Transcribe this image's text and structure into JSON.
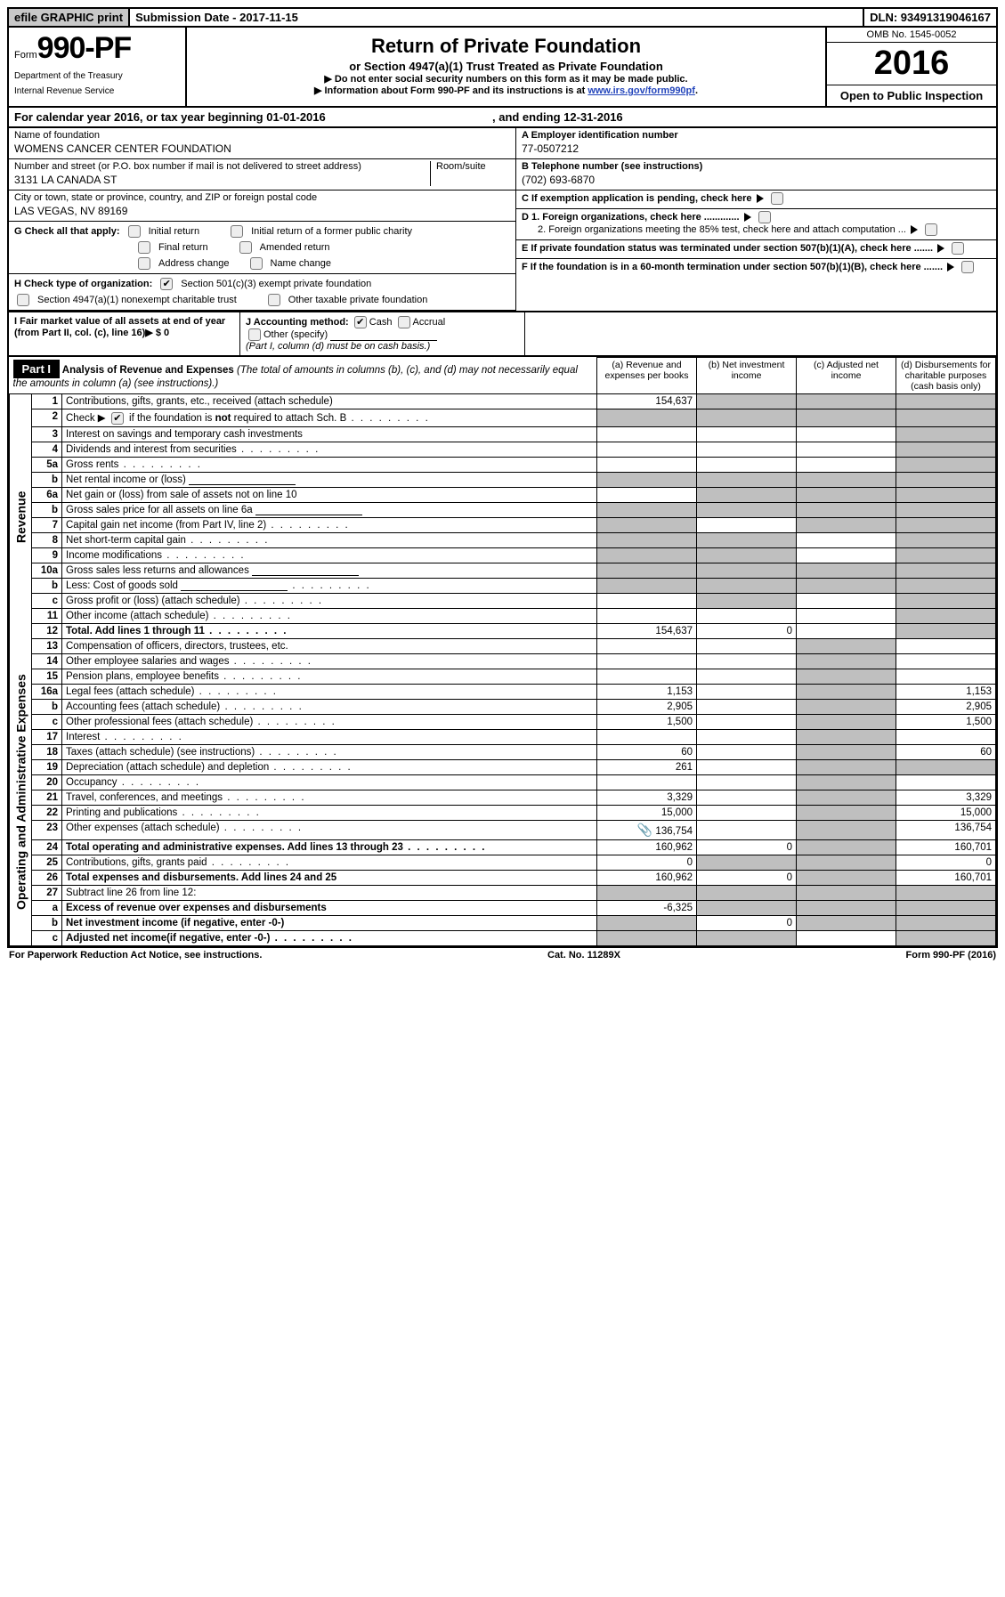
{
  "topbar": {
    "efile": "efile GRAPHIC print",
    "submission": "Submission Date - 2017-11-15",
    "dln": "DLN: 93491319046167"
  },
  "header": {
    "form_prefix": "Form",
    "form_number": "990-PF",
    "dept1": "Department of the Treasury",
    "dept2": "Internal Revenue Service",
    "title": "Return of Private Foundation",
    "subtitle": "or Section 4947(a)(1) Trust Treated as Private Foundation",
    "warn1": "▶ Do not enter social security numbers on this form as it may be made public.",
    "warn2_pre": "▶ Information about Form 990-PF and its instructions is at ",
    "warn2_link": "www.irs.gov/form990pf",
    "omb": "OMB No. 1545-0052",
    "year": "2016",
    "open": "Open to Public Inspection"
  },
  "calyear": {
    "text_pre": "For calendar year 2016, or tax year beginning ",
    "begin": "01-01-2016",
    "mid": " , and ending ",
    "end": "12-31-2016"
  },
  "id": {
    "name_lbl": "Name of foundation",
    "name": "WOMENS CANCER CENTER FOUNDATION",
    "addr_lbl": "Number and street (or P.O. box number if mail is not delivered to street address)",
    "addr": "3131 LA CANADA ST",
    "room_lbl": "Room/suite",
    "city_lbl": "City or town, state or province, country, and ZIP or foreign postal code",
    "city": "LAS VEGAS, NV  89169",
    "a_lbl": "A Employer identification number",
    "a_val": "77-0507212",
    "b_lbl": "B Telephone number (see instructions)",
    "b_val": "(702) 693-6870",
    "c_lbl": "C If exemption application is pending, check here",
    "d1": "D 1. Foreign organizations, check here .............",
    "d2": "2. Foreign organizations meeting the 85% test, check here and attach computation ...",
    "e": "E  If private foundation status was terminated under section 507(b)(1)(A), check here .......",
    "f": "F  If the foundation is in a 60-month termination under section 507(b)(1)(B), check here .......",
    "g_lbl": "G Check all that apply:",
    "g_opts": [
      "Initial return",
      "Initial return of a former public charity",
      "Final return",
      "Amended return",
      "Address change",
      "Name change"
    ],
    "h_lbl": "H Check type of organization:",
    "h_opts": [
      "Section 501(c)(3) exempt private foundation",
      "Section 4947(a)(1) nonexempt charitable trust",
      "Other taxable private foundation"
    ],
    "i_lbl": "I Fair market value of all assets at end of year (from Part II, col. (c), line 16)▶",
    "i_val": "$  0",
    "j_lbl": "J Accounting method:",
    "j_opts": [
      "Cash",
      "Accrual",
      "Other (specify)"
    ],
    "j_note": "(Part I, column (d) must be on cash basis.)"
  },
  "part1": {
    "title": "Part I",
    "head": "Analysis of Revenue and Expenses",
    "head_note": "(The total of amounts in columns (b), (c), and (d) may not necessarily equal the amounts in column (a) (see instructions).)",
    "col_a": "(a)  Revenue and expenses per books",
    "col_b": "(b)  Net investment income",
    "col_c": "(c)  Adjusted net income",
    "col_d": "(d)  Disbursements for charitable purposes (cash basis only)",
    "side_rev": "Revenue",
    "side_op": "Operating and Administrative Expenses",
    "rows": {
      "r1": {
        "n": "1",
        "d": "Contributions, gifts, grants, etc., received (attach schedule)",
        "a": "154,637",
        "grey": [
          "b",
          "c",
          "d"
        ]
      },
      "r2": {
        "n": "2",
        "d": "Check ▶ ☑  if the foundation is not required to attach Sch. B",
        "dots": true,
        "grey": [
          "a",
          "b",
          "c",
          "d"
        ]
      },
      "r3": {
        "n": "3",
        "d": "Interest on savings and temporary cash investments",
        "grey": [
          "d"
        ]
      },
      "r4": {
        "n": "4",
        "d": "Dividends and interest from securities",
        "dots": true,
        "grey": [
          "d"
        ]
      },
      "r5a": {
        "n": "5a",
        "d": "Gross rents",
        "dots": true,
        "grey": [
          "d"
        ]
      },
      "r5b": {
        "n": "b",
        "d": "Net rental income or (loss)",
        "il": true,
        "grey": [
          "a",
          "b",
          "c",
          "d"
        ]
      },
      "r6a": {
        "n": "6a",
        "d": "Net gain or (loss) from sale of assets not on line 10",
        "grey": [
          "b",
          "c",
          "d"
        ]
      },
      "r6b": {
        "n": "b",
        "d": "Gross sales price for all assets on line 6a",
        "il": true,
        "grey": [
          "a",
          "b",
          "c",
          "d"
        ]
      },
      "r7": {
        "n": "7",
        "d": "Capital gain net income (from Part IV, line 2)",
        "dots": true,
        "grey": [
          "a",
          "c",
          "d"
        ]
      },
      "r8": {
        "n": "8",
        "d": "Net short-term capital gain",
        "dots": true,
        "grey": [
          "a",
          "b",
          "d"
        ]
      },
      "r9": {
        "n": "9",
        "d": "Income modifications",
        "dots": true,
        "grey": [
          "a",
          "b",
          "d"
        ]
      },
      "r10a": {
        "n": "10a",
        "d": "Gross sales less returns and allowances",
        "il": true,
        "grey": [
          "a",
          "b",
          "c",
          "d"
        ]
      },
      "r10b": {
        "n": "b",
        "d": "Less: Cost of goods sold",
        "dots": true,
        "il": true,
        "grey": [
          "a",
          "b",
          "c",
          "d"
        ]
      },
      "r10c": {
        "n": "c",
        "d": "Gross profit or (loss) (attach schedule)",
        "dots": true,
        "grey": [
          "b",
          "d"
        ]
      },
      "r11": {
        "n": "11",
        "d": "Other income (attach schedule)",
        "dots": true,
        "grey": [
          "d"
        ]
      },
      "r12": {
        "n": "12",
        "d": "Total. Add lines 1 through 11",
        "dots": true,
        "bold": true,
        "a": "154,637",
        "b": "0",
        "grey": [
          "d"
        ]
      },
      "r13": {
        "n": "13",
        "d": "Compensation of officers, directors, trustees, etc.",
        "grey": [
          "c"
        ]
      },
      "r14": {
        "n": "14",
        "d": "Other employee salaries and wages",
        "dots": true,
        "grey": [
          "c"
        ]
      },
      "r15": {
        "n": "15",
        "d": "Pension plans, employee benefits",
        "dots": true,
        "grey": [
          "c"
        ]
      },
      "r16a": {
        "n": "16a",
        "d": "Legal fees (attach schedule)",
        "dots": true,
        "a": "1,153",
        "dv": "1,153",
        "grey": [
          "c"
        ]
      },
      "r16b": {
        "n": "b",
        "d": "Accounting fees (attach schedule)",
        "dots": true,
        "a": "2,905",
        "dv": "2,905",
        "grey": [
          "c"
        ]
      },
      "r16c": {
        "n": "c",
        "d": "Other professional fees (attach schedule)",
        "dots": true,
        "a": "1,500",
        "dv": "1,500",
        "grey": [
          "c"
        ]
      },
      "r17": {
        "n": "17",
        "d": "Interest",
        "dots": true,
        "grey": [
          "c"
        ]
      },
      "r18": {
        "n": "18",
        "d": "Taxes (attach schedule) (see instructions)",
        "dots": true,
        "a": "60",
        "dv": "60",
        "grey": [
          "c"
        ]
      },
      "r19": {
        "n": "19",
        "d": "Depreciation (attach schedule) and depletion",
        "dots": true,
        "a": "261",
        "grey": [
          "c",
          "d"
        ]
      },
      "r20": {
        "n": "20",
        "d": "Occupancy",
        "dots": true,
        "grey": [
          "c"
        ]
      },
      "r21": {
        "n": "21",
        "d": "Travel, conferences, and meetings",
        "dots": true,
        "a": "3,329",
        "dv": "3,329",
        "grey": [
          "c"
        ]
      },
      "r22": {
        "n": "22",
        "d": "Printing and publications",
        "dots": true,
        "a": "15,000",
        "dv": "15,000",
        "grey": [
          "c"
        ]
      },
      "r23": {
        "n": "23",
        "d": "Other expenses (attach schedule)",
        "dots": true,
        "a": "136,754",
        "a_icon": "📎",
        "dv": "136,754",
        "grey": [
          "c"
        ]
      },
      "r24": {
        "n": "24",
        "d": "Total operating and administrative expenses. Add lines 13 through 23",
        "dots": true,
        "bold": true,
        "a": "160,962",
        "b": "0",
        "dv": "160,701",
        "grey": [
          "c"
        ]
      },
      "r25": {
        "n": "25",
        "d": "Contributions, gifts, grants paid",
        "dots": true,
        "a": "0",
        "dv": "0",
        "grey": [
          "b",
          "c"
        ]
      },
      "r26": {
        "n": "26",
        "d": "Total expenses and disbursements. Add lines 24 and 25",
        "bold": true,
        "a": "160,962",
        "b": "0",
        "dv": "160,701",
        "grey": [
          "c"
        ]
      },
      "r27": {
        "n": "27",
        "d": "Subtract line 26 from line 12:",
        "grey": [
          "a",
          "b",
          "c",
          "d"
        ]
      },
      "r27a": {
        "n": "a",
        "d": "Excess of revenue over expenses and disbursements",
        "bold": true,
        "a": "-6,325",
        "grey": [
          "b",
          "c",
          "d"
        ]
      },
      "r27b": {
        "n": "b",
        "d": "Net investment income (if negative, enter -0-)",
        "bold": true,
        "b": "0",
        "grey": [
          "a",
          "c",
          "d"
        ]
      },
      "r27c": {
        "n": "c",
        "d": "Adjusted net income(if negative, enter -0-)",
        "dots": true,
        "bold": true,
        "grey": [
          "a",
          "b",
          "d"
        ]
      }
    }
  },
  "footer": {
    "left": "For Paperwork Reduction Act Notice, see instructions.",
    "mid": "Cat. No. 11289X",
    "right": "Form 990-PF (2016)"
  },
  "style": {
    "grey": "#bfbfbf",
    "link": "#2244bb"
  }
}
